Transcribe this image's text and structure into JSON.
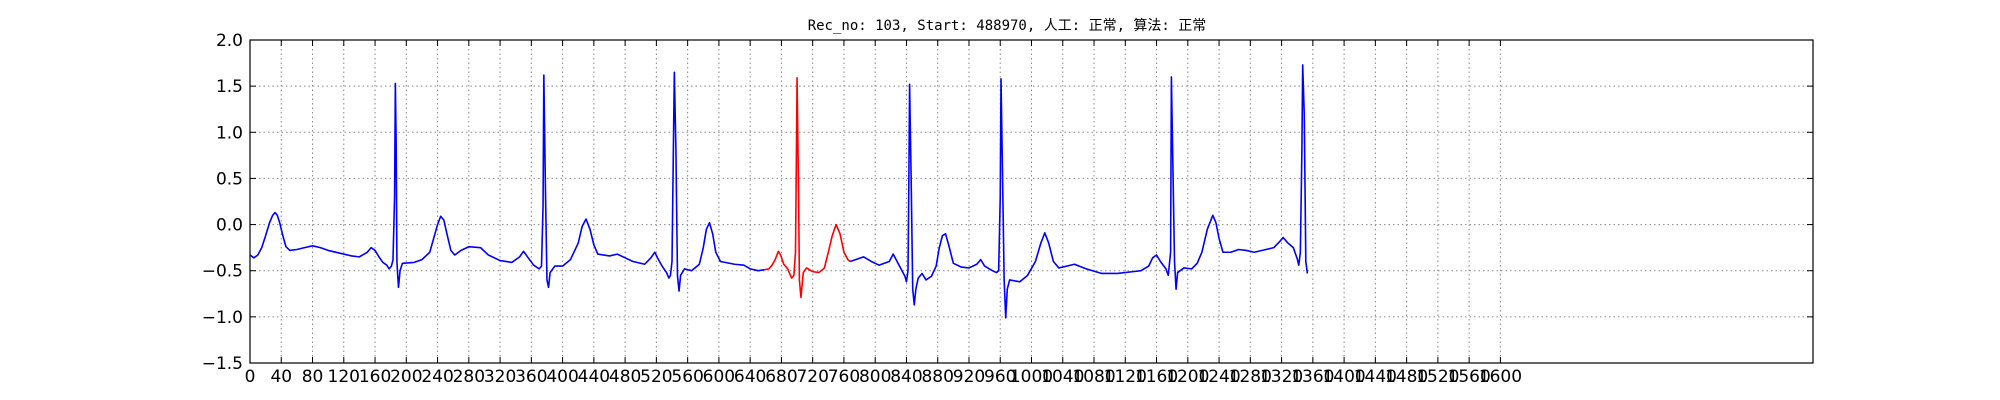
{
  "chart_data": {
    "type": "line",
    "title": "Rec_no: 103, Start: 488970, 人工: 正常, 算法: 正常",
    "xlabel": "",
    "ylabel": "",
    "xlim": [
      0,
      2000
    ],
    "ylim": [
      -1.5,
      2.0
    ],
    "grid": true,
    "y_ticks": [
      -1.5,
      -1.0,
      -0.5,
      0.0,
      0.5,
      1.0,
      1.5,
      2.0
    ],
    "y_tick_labels": [
      "−1.5",
      "−1.0",
      "−0.5",
      "0.0",
      "0.5",
      "1.0",
      "1.5",
      "2.0"
    ],
    "x_ticks": [
      0,
      40,
      80,
      120,
      160,
      200,
      240,
      280,
      320,
      360,
      400,
      440,
      480,
      520,
      560,
      600,
      640,
      680,
      720,
      760,
      800,
      840,
      880,
      920,
      960,
      1000,
      1040,
      1080,
      1120,
      1160,
      1200,
      1240,
      1280,
      1320,
      1360,
      1400,
      1440,
      1480,
      1520,
      1560,
      1600
    ],
    "x_tick_labels": [
      "0",
      "40",
      "80",
      "120",
      "160",
      "200",
      "240",
      "280",
      "320",
      "360",
      "400",
      "440",
      "480",
      "520",
      "560",
      "600",
      "640",
      "680",
      "720",
      "760",
      "800",
      "840",
      "880",
      "920",
      "960",
      "1000",
      "1040",
      "1080",
      "1120",
      "1160",
      "1200",
      "1240",
      "1280",
      "1320",
      "1360",
      "1400",
      "1440",
      "1480",
      "1520",
      "1560",
      "1600"
    ],
    "colors": {
      "normal": "#0000ff",
      "highlight": "#ff0000",
      "grid": "#888888"
    },
    "series": [
      {
        "color": "#0000ff",
        "points": [
          [
            0,
            -0.33
          ],
          [
            5,
            -0.36
          ],
          [
            10,
            -0.33
          ],
          [
            15,
            -0.25
          ],
          [
            20,
            -0.12
          ],
          [
            25,
            0.02
          ],
          [
            29,
            0.1
          ],
          [
            32,
            0.13
          ],
          [
            35,
            0.1
          ],
          [
            38,
            0.02
          ],
          [
            42,
            -0.12
          ],
          [
            46,
            -0.24
          ],
          [
            51,
            -0.28
          ],
          [
            60,
            -0.27
          ],
          [
            70,
            -0.25
          ],
          [
            80,
            -0.23
          ],
          [
            90,
            -0.25
          ],
          [
            100,
            -0.28
          ],
          [
            115,
            -0.31
          ],
          [
            130,
            -0.34
          ],
          [
            140,
            -0.35
          ],
          [
            150,
            -0.3
          ],
          [
            155,
            -0.25
          ],
          [
            160,
            -0.28
          ],
          [
            165,
            -0.35
          ],
          [
            170,
            -0.41
          ],
          [
            175,
            -0.44
          ],
          [
            178,
            -0.48
          ],
          [
            181,
            -0.45
          ],
          [
            183,
            -0.38
          ],
          [
            185,
            0.3
          ],
          [
            186,
            1.53
          ],
          [
            187,
            0.9
          ],
          [
            188,
            -0.4
          ],
          [
            189,
            -0.55
          ],
          [
            190,
            -0.68
          ],
          [
            192,
            -0.5
          ],
          [
            195,
            -0.42
          ],
          [
            210,
            -0.41
          ],
          [
            220,
            -0.38
          ],
          [
            230,
            -0.3
          ],
          [
            235,
            -0.15
          ],
          [
            240,
            0.0
          ],
          [
            244,
            0.09
          ],
          [
            248,
            0.05
          ],
          [
            252,
            -0.1
          ],
          [
            257,
            -0.28
          ],
          [
            262,
            -0.33
          ],
          [
            270,
            -0.28
          ],
          [
            280,
            -0.24
          ],
          [
            295,
            -0.25
          ],
          [
            305,
            -0.33
          ],
          [
            320,
            -0.39
          ],
          [
            335,
            -0.41
          ],
          [
            345,
            -0.35
          ],
          [
            350,
            -0.29
          ],
          [
            356,
            -0.36
          ],
          [
            363,
            -0.44
          ],
          [
            370,
            -0.48
          ],
          [
            373,
            -0.45
          ],
          [
            375,
            0.2
          ],
          [
            376,
            1.62
          ],
          [
            378,
            0.4
          ],
          [
            380,
            -0.6
          ],
          [
            382,
            -0.68
          ],
          [
            384,
            -0.52
          ],
          [
            390,
            -0.45
          ],
          [
            400,
            -0.45
          ],
          [
            410,
            -0.38
          ],
          [
            420,
            -0.2
          ],
          [
            425,
            -0.02
          ],
          [
            430,
            0.06
          ],
          [
            435,
            -0.05
          ],
          [
            440,
            -0.22
          ],
          [
            445,
            -0.32
          ],
          [
            460,
            -0.34
          ],
          [
            470,
            -0.32
          ],
          [
            480,
            -0.36
          ],
          [
            490,
            -0.4
          ],
          [
            505,
            -0.43
          ],
          [
            513,
            -0.36
          ],
          [
            518,
            -0.3
          ],
          [
            522,
            -0.37
          ],
          [
            528,
            -0.46
          ],
          [
            533,
            -0.52
          ],
          [
            536,
            -0.58
          ],
          [
            538,
            -0.55
          ],
          [
            540,
            -0.4
          ],
          [
            542,
            1.0
          ],
          [
            543,
            1.65
          ],
          [
            545,
            0.8
          ],
          [
            547,
            -0.55
          ],
          [
            549,
            -0.72
          ],
          [
            551,
            -0.55
          ],
          [
            556,
            -0.48
          ],
          [
            565,
            -0.5
          ],
          [
            575,
            -0.43
          ],
          [
            580,
            -0.25
          ],
          [
            584,
            -0.05
          ],
          [
            588,
            0.02
          ],
          [
            592,
            -0.1
          ],
          [
            596,
            -0.3
          ],
          [
            602,
            -0.4
          ],
          [
            620,
            -0.43
          ],
          [
            632,
            -0.44
          ],
          [
            640,
            -0.48
          ],
          [
            650,
            -0.5
          ],
          [
            658,
            -0.49
          ]
        ]
      },
      {
        "color": "#ff0000",
        "points": [
          [
            658,
            -0.49
          ],
          [
            664,
            -0.48
          ],
          [
            668,
            -0.44
          ],
          [
            672,
            -0.38
          ],
          [
            676,
            -0.29
          ],
          [
            679,
            -0.33
          ],
          [
            683,
            -0.43
          ],
          [
            688,
            -0.48
          ],
          [
            693,
            -0.58
          ],
          [
            696,
            -0.55
          ],
          [
            698,
            -0.3
          ],
          [
            699,
            0.6
          ],
          [
            700,
            1.59
          ],
          [
            702,
            0.3
          ],
          [
            703,
            -0.6
          ],
          [
            705,
            -0.79
          ],
          [
            708,
            -0.52
          ],
          [
            712,
            -0.47
          ],
          [
            720,
            -0.51
          ],
          [
            728,
            -0.52
          ],
          [
            735,
            -0.47
          ],
          [
            740,
            -0.3
          ],
          [
            745,
            -0.12
          ],
          [
            750,
            0.0
          ],
          [
            755,
            -0.1
          ],
          [
            760,
            -0.3
          ],
          [
            765,
            -0.38
          ],
          [
            768,
            -0.4
          ]
        ]
      },
      {
        "color": "#0000ff",
        "points": [
          [
            768,
            -0.4
          ],
          [
            775,
            -0.38
          ],
          [
            785,
            -0.35
          ],
          [
            795,
            -0.4
          ],
          [
            805,
            -0.44
          ],
          [
            818,
            -0.4
          ],
          [
            823,
            -0.32
          ],
          [
            828,
            -0.4
          ],
          [
            833,
            -0.48
          ],
          [
            838,
            -0.56
          ],
          [
            840,
            -0.62
          ],
          [
            842,
            -0.5
          ],
          [
            843,
            0.4
          ],
          [
            844,
            1.52
          ],
          [
            846,
            0.5
          ],
          [
            848,
            -0.7
          ],
          [
            850,
            -0.87
          ],
          [
            852,
            -0.7
          ],
          [
            855,
            -0.58
          ],
          [
            860,
            -0.53
          ],
          [
            865,
            -0.6
          ],
          [
            872,
            -0.56
          ],
          [
            878,
            -0.45
          ],
          [
            882,
            -0.25
          ],
          [
            886,
            -0.12
          ],
          [
            890,
            -0.1
          ],
          [
            894,
            -0.22
          ],
          [
            900,
            -0.42
          ],
          [
            910,
            -0.46
          ],
          [
            920,
            -0.47
          ],
          [
            930,
            -0.43
          ],
          [
            935,
            -0.38
          ],
          [
            940,
            -0.45
          ],
          [
            950,
            -0.5
          ],
          [
            955,
            -0.52
          ],
          [
            958,
            -0.5
          ],
          [
            960,
            0.3
          ],
          [
            961,
            1.58
          ],
          [
            963,
            0.5
          ],
          [
            965,
            -0.6
          ],
          [
            967,
            -1.01
          ],
          [
            969,
            -0.7
          ],
          [
            972,
            -0.6
          ],
          [
            985,
            -0.62
          ],
          [
            995,
            -0.55
          ],
          [
            1005,
            -0.4
          ],
          [
            1012,
            -0.2
          ],
          [
            1017,
            -0.09
          ],
          [
            1022,
            -0.2
          ],
          [
            1028,
            -0.4
          ],
          [
            1035,
            -0.47
          ],
          [
            1045,
            -0.45
          ],
          [
            1055,
            -0.43
          ],
          [
            1070,
            -0.48
          ],
          [
            1090,
            -0.53
          ],
          [
            1110,
            -0.53
          ],
          [
            1130,
            -0.51
          ],
          [
            1140,
            -0.5
          ],
          [
            1150,
            -0.45
          ],
          [
            1155,
            -0.36
          ],
          [
            1160,
            -0.33
          ],
          [
            1165,
            -0.4
          ],
          [
            1172,
            -0.48
          ],
          [
            1175,
            -0.55
          ],
          [
            1178,
            -0.3
          ],
          [
            1179,
            1.6
          ],
          [
            1181,
            0.6
          ],
          [
            1183,
            -0.4
          ],
          [
            1185,
            -0.7
          ],
          [
            1187,
            -0.52
          ],
          [
            1195,
            -0.47
          ],
          [
            1205,
            -0.48
          ],
          [
            1212,
            -0.42
          ],
          [
            1218,
            -0.3
          ],
          [
            1225,
            -0.05
          ],
          [
            1232,
            0.1
          ],
          [
            1236,
            0.02
          ],
          [
            1240,
            -0.15
          ],
          [
            1245,
            -0.3
          ],
          [
            1255,
            -0.3
          ],
          [
            1265,
            -0.27
          ],
          [
            1275,
            -0.28
          ],
          [
            1285,
            -0.3
          ],
          [
            1300,
            -0.27
          ],
          [
            1310,
            -0.25
          ],
          [
            1318,
            -0.18
          ],
          [
            1322,
            -0.14
          ],
          [
            1328,
            -0.2
          ],
          [
            1335,
            -0.25
          ],
          [
            1340,
            -0.37
          ],
          [
            1342,
            -0.44
          ],
          [
            1344,
            -0.3
          ],
          [
            1346,
            0.8
          ],
          [
            1347,
            1.73
          ],
          [
            1349,
            1.2
          ],
          [
            1351,
            -0.4
          ],
          [
            1353,
            -0.53
          ]
        ]
      }
    ]
  }
}
